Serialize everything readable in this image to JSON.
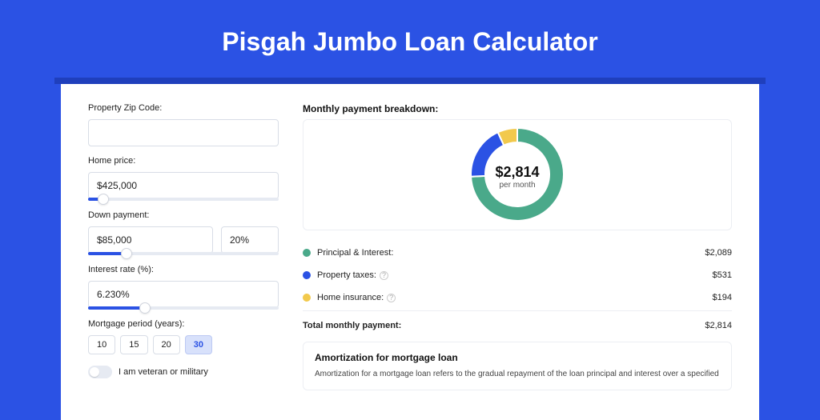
{
  "title": "Pisgah Jumbo Loan Calculator",
  "colors": {
    "page_bg": "#2b52e4",
    "shadow": "#1f3fbc",
    "panel_bg": "#ffffff",
    "border": "#d8dde6",
    "slider_fill": "#2b52e4",
    "slider_track": "#e6eaf2"
  },
  "left": {
    "zip": {
      "label": "Property Zip Code:",
      "value": ""
    },
    "home_price": {
      "label": "Home price:",
      "value": "$425,000",
      "slider_pct": 8
    },
    "down_payment": {
      "label": "Down payment:",
      "amount": "$85,000",
      "percent": "20%",
      "slider_pct": 20
    },
    "interest_rate": {
      "label": "Interest rate (%):",
      "value": "6.230%",
      "slider_pct": 30
    },
    "mortgage_period": {
      "label": "Mortgage period (years):",
      "options": [
        "10",
        "15",
        "20",
        "30"
      ],
      "selected_index": 3
    },
    "veteran": {
      "label": "I am veteran or military",
      "on": false
    }
  },
  "right": {
    "breakdown_heading": "Monthly payment breakdown:",
    "donut": {
      "center_amount": "$2,814",
      "center_sub": "per month",
      "slices": [
        {
          "label": "Principal & Interest",
          "value": 2089,
          "color": "#4aa98a",
          "start": 0
        },
        {
          "label": "Property taxes",
          "value": 531,
          "color": "#2b52e4",
          "start": 267.2
        },
        {
          "label": "Home insurance",
          "value": 194,
          "color": "#f2c94c",
          "start": 335.2
        }
      ],
      "size": 120,
      "thickness": 18
    },
    "legend": [
      {
        "color": "#4aa98a",
        "label": "Principal & Interest:",
        "value": "$2,089",
        "info": false
      },
      {
        "color": "#2b52e4",
        "label": "Property taxes:",
        "value": "$531",
        "info": true
      },
      {
        "color": "#f2c94c",
        "label": "Home insurance:",
        "value": "$194",
        "info": true
      }
    ],
    "total": {
      "label": "Total monthly payment:",
      "value": "$2,814"
    },
    "amortization": {
      "heading": "Amortization for mortgage loan",
      "text": "Amortization for a mortgage loan refers to the gradual repayment of the loan principal and interest over a specified"
    }
  }
}
